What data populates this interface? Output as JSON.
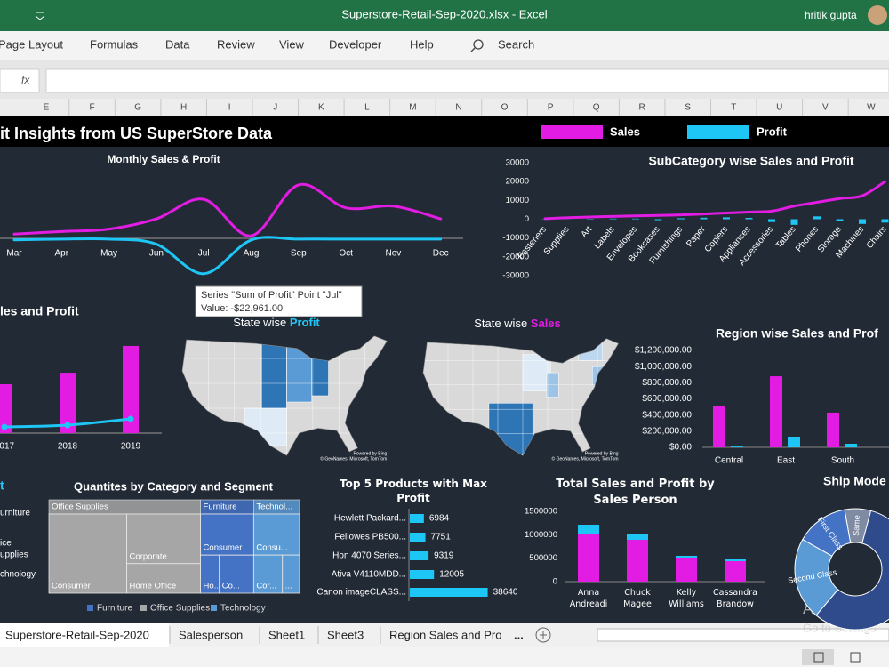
{
  "window": {
    "title": "Superstore-Retail-Sep-2020.xlsx - Excel",
    "user": "hritik gupta"
  },
  "ribbon": {
    "tabs": [
      "Page Layout",
      "Formulas",
      "Data",
      "Review",
      "View",
      "Developer",
      "Help"
    ],
    "search": "Search"
  },
  "formula_bar": {
    "fx": "fx"
  },
  "columns": [
    "E",
    "F",
    "G",
    "H",
    "I",
    "J",
    "K",
    "L",
    "M",
    "N",
    "O",
    "P",
    "Q",
    "R",
    "S",
    "T",
    "U",
    "V",
    "W"
  ],
  "dashboard": {
    "title": "it Insights from US SuperStore Data"
  },
  "tooltip": {
    "line1": "Series \"Sum of Profit\" Point \"Jul\"",
    "line2": "Value: -$22,961.00"
  },
  "partial_chart": {
    "title": "t",
    "labels": [
      "urniture",
      "ice",
      "upplies",
      "chnology"
    ]
  },
  "chart_data": [
    {
      "type": "line",
      "title": "Monthly Sales & Profit",
      "categories": [
        "Mar",
        "Apr",
        "May",
        "Jun",
        "Jul",
        "Aug",
        "Sep",
        "Oct",
        "Nov",
        "Dec"
      ],
      "series": [
        {
          "name": "Sales",
          "color": "#e31ce3",
          "values": [
            2750,
            4400,
            6000,
            12650,
            25300,
            1650,
            34650,
            19800,
            20900,
            12650
          ]
        },
        {
          "name": "Profit",
          "color": "#1ec6f6",
          "values": [
            -1000,
            -500,
            -500,
            -3800,
            -22961,
            -1100,
            -500,
            -500,
            -500,
            -500
          ]
        }
      ],
      "ylim": [
        -30000,
        45000
      ]
    },
    {
      "type": "combo",
      "title": "SubCategory wise Sales and Profit",
      "categories": [
        "Fasteners",
        "Supplies",
        "Art",
        "Labels",
        "Envelopes",
        "Bookcases",
        "Furnishings",
        "Paper",
        "Copiers",
        "Appliances",
        "Accessories",
        "Tables",
        "Phones",
        "Storage",
        "Machines",
        "Chairs"
      ],
      "series": [
        {
          "color": "#e31ce3",
          "mark": "line",
          "values": [
            300,
            800,
            1200,
            1500,
            1800,
            2000,
            2300,
            2800,
            3300,
            3800,
            4300,
            7000,
            9000,
            11000,
            12500,
            20000
          ]
        },
        {
          "color": "#1ec6f6",
          "mark": "bar",
          "values": [
            100,
            50,
            200,
            300,
            300,
            -500,
            500,
            800,
            1000,
            700,
            -1500,
            -3000,
            1500,
            -800,
            -2500,
            -1800
          ]
        }
      ],
      "ylim": [
        -30000,
        30000
      ],
      "yticks": [
        30000,
        20000,
        10000,
        0,
        -10000,
        -20000,
        -30000
      ]
    },
    {
      "type": "combo",
      "title": "les and Profit",
      "categories": [
        "2017",
        "2018",
        "2019"
      ],
      "series": [
        {
          "color": "#e31ce3",
          "mark": "bar",
          "values": [
            411000,
            508000,
            733000
          ]
        },
        {
          "color": "#1ec6f6",
          "mark": "line",
          "values": [
            52000,
            67000,
            120000
          ]
        }
      ],
      "ylim": [
        0,
        800000
      ]
    },
    {
      "type": "map",
      "title": "State wise ",
      "highlight": "Profit",
      "highlight_color": "#1ec6f6",
      "credits": [
        "Powered by Bing",
        "© GeoNames, Microsoft, TomTom"
      ]
    },
    {
      "type": "map",
      "title": "State wise ",
      "highlight": "Sales",
      "highlight_color": "#e31ce3",
      "credits": [
        "Powered by Bing",
        "© GeoNames, Microsoft, TomTom"
      ]
    },
    {
      "type": "bar",
      "title": "Region wise Sales and Prof",
      "categories": [
        "Central",
        "East",
        "South"
      ],
      "series": [
        {
          "color": "#e31ce3",
          "values": [
            517000,
            880000,
            430000
          ]
        },
        {
          "color": "#1ec6f6",
          "values": [
            10000,
            132000,
            44000
          ]
        }
      ],
      "ylim": [
        0,
        1200000
      ],
      "yticks": [
        {
          "value": 0,
          "label": "$0.00"
        },
        {
          "value": 200000,
          "label": "$200,000.00"
        },
        {
          "value": 400000,
          "label": "$400,000.00"
        },
        {
          "value": 600000,
          "label": "$600,000.00"
        },
        {
          "value": 800000,
          "label": "$800,000.00"
        },
        {
          "value": 1000000,
          "label": "$1,000,000.00"
        },
        {
          "value": 1200000,
          "label": "$1,200,000.00"
        }
      ]
    },
    {
      "type": "treemap",
      "title": "Quantites by Category and Segment",
      "groups": [
        {
          "name": "Office Supplies",
          "color": "#a6a6a6",
          "cells": [
            {
              "label": "Consumer",
              "value": 11758
            },
            {
              "label": "Corporate",
              "value": 6986
            },
            {
              "label": "Home Office",
              "value": 4162
            }
          ]
        },
        {
          "name": "Furniture",
          "color": "#4472c4",
          "cells": [
            {
              "label": "Consumer",
              "value": 4166
            },
            {
              "label": "Ho...",
              "value": 1367
            },
            {
              "label": "Co...",
              "value": 2495
            }
          ]
        },
        {
          "name": "Technology",
          "label": "Technol...",
          "color": "#5b9bd5",
          "cells": [
            {
              "label": "Consu...",
              "value": 3597
            },
            {
              "label": "Cor...",
              "value": 2095
            },
            {
              "label": "...",
              "value": 1247
            }
          ]
        }
      ]
    },
    {
      "type": "hbar",
      "title": "Top 5 Products with Max Profit",
      "categories": [
        "Hewlett Packard...",
        "Fellowes PB500...",
        "Hon 4070 Series...",
        "Ativa V4110MDD...",
        "Canon imageCLASS..."
      ],
      "values": [
        6984,
        7751,
        9319,
        12005,
        38640
      ],
      "color": "#1ec6f6",
      "xlim": [
        0,
        45000
      ]
    },
    {
      "type": "stacked_bar",
      "title": "Total Sales and Profit by Sales Person",
      "categories": [
        "Anna Andreadi",
        "Chuck Magee",
        "Kelly Williams",
        "Cassandra Brandow"
      ],
      "series": [
        {
          "color": "#e31ce3",
          "values": [
            1025000,
            892000,
            513000,
            437000
          ]
        },
        {
          "color": "#1ec6f6",
          "values": [
            190000,
            133000,
            38000,
            57000
          ]
        }
      ],
      "ylim": [
        0,
        1500000
      ],
      "yticks": [
        0,
        500000,
        1000000,
        1500000
      ]
    },
    {
      "type": "donut",
      "title": "Ship Mode",
      "categories": [
        "Same",
        "First Class",
        "Second Class",
        null
      ],
      "values": [
        7,
        14,
        22,
        57
      ],
      "colors": [
        "#7f8ba3",
        "#4472c4",
        "#5b9bd5",
        "#2f4b8c"
      ]
    }
  ],
  "sheet_tabs": [
    "Superstore-Retail-Sep-2020",
    "Salesperson",
    "Sheet1",
    "Sheet3",
    "Region Sales and Pro",
    "..."
  ],
  "watermark": {
    "line1": "Activate W",
    "line2": "Go to Settings"
  }
}
